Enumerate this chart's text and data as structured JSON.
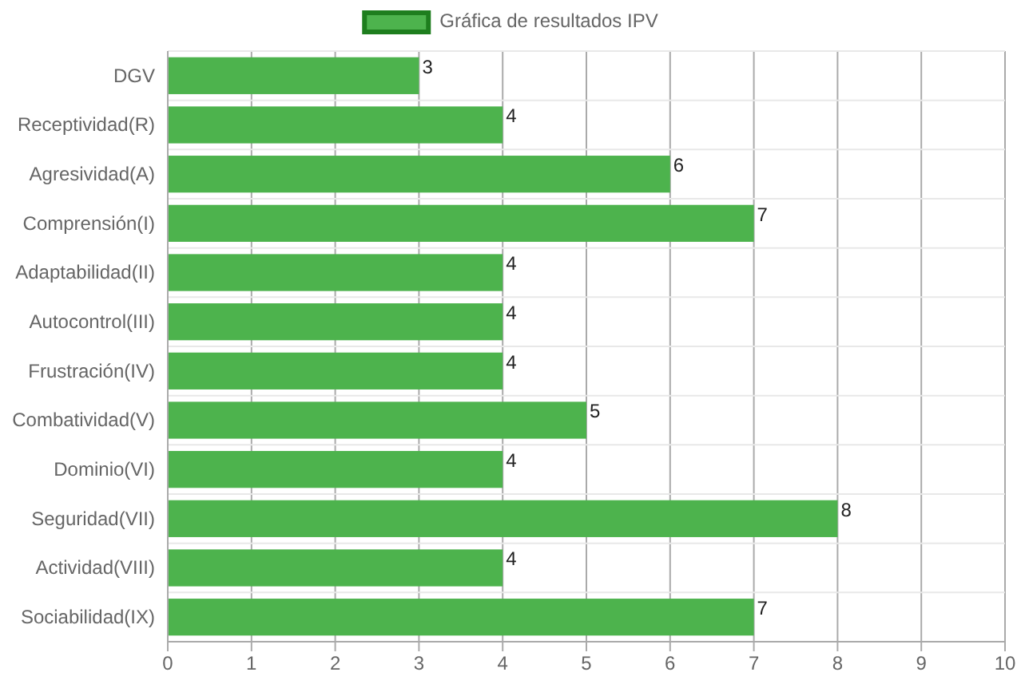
{
  "chart_data": {
    "type": "bar",
    "orientation": "horizontal",
    "categories": [
      "DGV",
      "Receptividad(R)",
      "Agresividad(A)",
      "Comprensión(I)",
      "Adaptabilidad(II)",
      "Autocontrol(III)",
      "Frustración(IV)",
      "Combatividad(V)",
      "Dominio(VI)",
      "Seguridad(VII)",
      "Actividad(VIII)",
      "Sociabilidad(IX)"
    ],
    "series": [
      {
        "name": "Gráfica de resultados IPV",
        "color": "#4db34d",
        "values": [
          3,
          4,
          6,
          7,
          4,
          4,
          4,
          5,
          4,
          8,
          4,
          7
        ]
      }
    ],
    "xlim": [
      0,
      10
    ],
    "xticks": [
      0,
      1,
      2,
      3,
      4,
      5,
      6,
      7,
      8,
      9,
      10
    ],
    "grid": true,
    "legend": "top",
    "data_labels": true
  }
}
